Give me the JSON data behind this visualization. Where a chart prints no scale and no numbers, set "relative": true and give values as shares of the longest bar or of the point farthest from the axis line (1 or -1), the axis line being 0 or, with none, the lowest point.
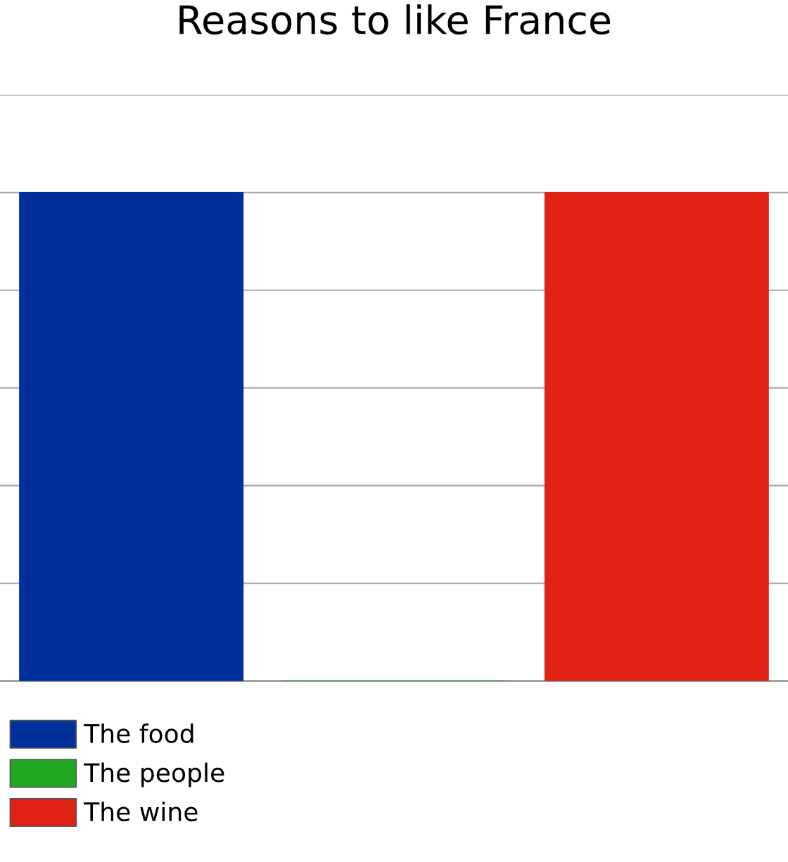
{
  "chart_data": {
    "type": "bar",
    "title": "Reasons to like France",
    "categories": [
      null
    ],
    "relative": true,
    "series": [
      {
        "name": "The food",
        "color": "#00309a",
        "values": [
          1
        ]
      },
      {
        "name": "The people",
        "color": "#20a820",
        "values": [
          0
        ]
      },
      {
        "name": "The wine",
        "color": "#e02214",
        "values": [
          1
        ]
      }
    ],
    "grid": "y",
    "legend": "bottom"
  }
}
